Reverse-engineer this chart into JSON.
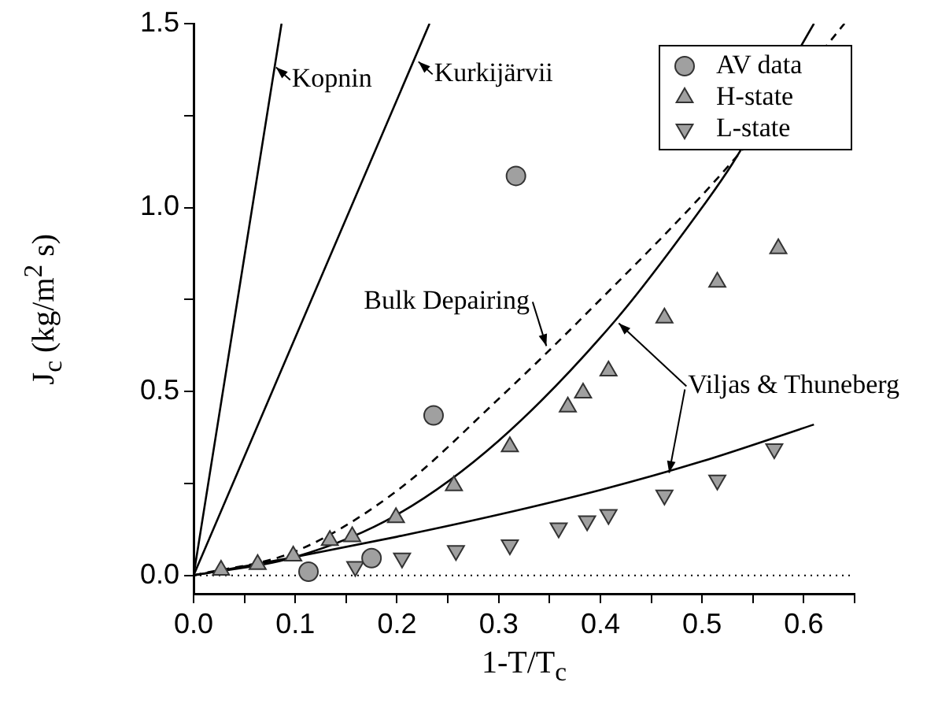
{
  "chart_data": {
    "type": "scatter",
    "xlabel": "1-T/T$_{c}$",
    "ylabel": "J$_{c}$ (kg/m$^{2}$ s)",
    "xlim": [
      0,
      0.65
    ],
    "ylim": [
      -0.05,
      1.5
    ],
    "xticks": [
      {
        "value": 0,
        "label": "0.0"
      },
      {
        "value": 0.05,
        "label": null
      },
      0.1,
      {
        "value": 0.15,
        "label": null
      },
      0.2,
      {
        "value": 0.25,
        "label": null
      },
      0.3,
      {
        "value": 0.35,
        "label": null
      },
      0.4,
      {
        "value": 0.45,
        "label": null
      },
      0.5,
      {
        "value": 0.55,
        "label": null
      },
      0.6,
      {
        "value": 0.65,
        "label": null
      }
    ],
    "yticks": [
      {
        "value": 0,
        "label": "0.0"
      },
      {
        "value": 0.25,
        "label": null
      },
      0.5,
      {
        "value": 0.75,
        "label": null
      },
      {
        "value": 1,
        "label": "1.0"
      },
      {
        "value": 1.25,
        "label": null
      },
      1.5
    ],
    "grid": false,
    "legend": "top right",
    "series": [
      {
        "name": "AV data",
        "marker": "circle",
        "color": "#a0a0a0",
        "x": [
          0.113,
          0.175,
          0.236,
          0.317
        ],
        "values": [
          0.01,
          0.047,
          0.435,
          1.086
        ]
      },
      {
        "name": "H-state",
        "marker": "triangle",
        "color": "#a0a0a0",
        "x": [
          0.027,
          0.063,
          0.098,
          0.134,
          0.156,
          0.199,
          0.256,
          0.311,
          0.368,
          0.383,
          0.408,
          0.463,
          0.515,
          0.575
        ],
        "values": [
          0.014,
          0.03,
          0.053,
          0.095,
          0.105,
          0.157,
          0.244,
          0.35,
          0.458,
          0.496,
          0.556,
          0.7,
          0.797,
          0.888
        ]
      },
      {
        "name": "L-state",
        "marker": "triangle_down",
        "color": "#a0a0a0",
        "x": [
          0.159,
          0.205,
          0.258,
          0.311,
          0.359,
          0.387,
          0.408,
          0.463,
          0.515,
          0.571
        ],
        "values": [
          0.024,
          0.047,
          0.067,
          0.083,
          0.129,
          0.148,
          0.165,
          0.218,
          0.259,
          0.344
        ]
      },
      {
        "type": "line",
        "marker": "none",
        "line_style": "solid",
        "color": "#000000",
        "x": [
          0,
          0.0865
        ],
        "values": [
          0,
          1.5
        ]
      },
      {
        "type": "line",
        "marker": "none",
        "line_style": "solid",
        "color": "#000000",
        "x": [
          0,
          0.232
        ],
        "values": [
          0,
          1.5
        ]
      },
      {
        "type": "line",
        "marker": "none",
        "line_style": "dashed",
        "color": "#000000",
        "x": [
          0,
          0.1,
          0.2,
          0.3,
          0.386,
          0.525,
          0.64
        ],
        "values": [
          0,
          0.065,
          0.23,
          0.48,
          0.711,
          1.11,
          1.5
        ]
      },
      {
        "type": "line",
        "marker": "none",
        "line_style": "solid",
        "color": "#000000",
        "x": [
          0,
          0.1,
          0.2,
          0.3,
          0.415,
          0.5,
          0.53,
          0.61
        ],
        "values": [
          0,
          0.05,
          0.165,
          0.366,
          0.694,
          1.0,
          1.12,
          1.5
        ]
      },
      {
        "type": "line",
        "marker": "none",
        "line_style": "solid",
        "color": "#000000",
        "x": [
          0,
          0.1,
          0.2,
          0.3,
          0.4,
          0.5,
          0.61
        ],
        "values": [
          0,
          0.05,
          0.105,
          0.165,
          0.232,
          0.31,
          0.41
        ]
      }
    ],
    "ref_lines": [
      {
        "axis": "y",
        "value": 0,
        "line_style": "dotted",
        "color": "#000000"
      }
    ],
    "annotations": [
      {
        "text": "Kopnin",
        "x": 0.078,
        "y": 1.39
      },
      {
        "text": "Kurkijärvii",
        "x": 0.218,
        "y": 1.405
      },
      {
        "text": "Bulk Depairing",
        "x": 0.35,
        "y": 0.615
      },
      {
        "text": "Viljas & Thuneberg",
        "x": 0.415,
        "y": 0.694
      }
    ]
  }
}
